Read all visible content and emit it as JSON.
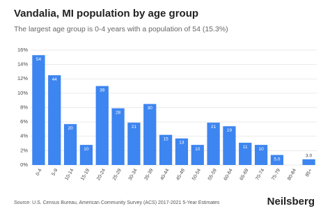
{
  "chart_data": {
    "type": "bar",
    "title": "Vandalia, MI population by age group",
    "subtitle": "The largest age group is 0-4 years with a population of 54 (15.3%)",
    "categories": [
      "0-4",
      "5-9",
      "10-14",
      "15-19",
      "20-24",
      "25-29",
      "30-34",
      "35-39",
      "40-44",
      "45-49",
      "50-54",
      "55-59",
      "60-64",
      "65-69",
      "70-74",
      "75-79",
      "80-84",
      "85+"
    ],
    "values": [
      15.3,
      12.5,
      5.7,
      2.8,
      11.0,
      7.9,
      5.9,
      8.5,
      4.2,
      3.7,
      2.8,
      5.9,
      5.4,
      3.1,
      2.8,
      1.4,
      0,
      0.8
    ],
    "data_labels": [
      "54",
      "44",
      "20",
      "10",
      "39",
      "28",
      "21",
      "30",
      "15",
      "13",
      "10",
      "21",
      "19",
      "11",
      "10",
      "5.0",
      null,
      "3.0"
    ],
    "color": "#3d85f0",
    "ylim": [
      0,
      16
    ],
    "yticks": [
      {
        "value": 0,
        "label": "0%"
      },
      {
        "value": 2,
        "label": "2%"
      },
      {
        "value": 4,
        "label": "4%"
      },
      {
        "value": 6,
        "label": "6%"
      },
      {
        "value": 8,
        "label": "8%"
      },
      {
        "value": 10,
        "label": "10%"
      },
      {
        "value": 12,
        "label": "12%"
      },
      {
        "value": 14,
        "label": "14%"
      },
      {
        "value": 16,
        "label": "16%"
      }
    ],
    "grid": true,
    "source": "Source: U.S. Census Bureau, American Community Survey (ACS) 2017-2021 5-Year Estimates",
    "brand": "Neilsberg"
  }
}
